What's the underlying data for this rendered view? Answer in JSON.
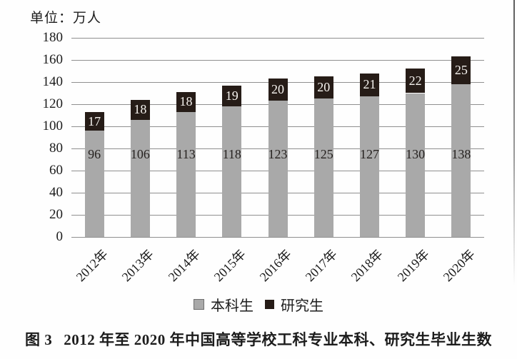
{
  "unit_label": "单位：万人",
  "caption": {
    "label": "图 3",
    "title": "2012 年至 2020 年中国高等学校工科专业本科、研究生毕业生数"
  },
  "colors": {
    "undergraduate_bar": "#a9a9a9",
    "graduate_bar": "#261c17",
    "graduate_label_text": "#f7f4f0",
    "gridline": "#8f8f8f",
    "text": "#1c1c1c",
    "legend_gray_border": "#6e6e6e"
  },
  "chart_data": {
    "type": "bar",
    "stacked": true,
    "title": "",
    "xlabel": "",
    "ylabel": "单位：万人",
    "categories": [
      "2012年",
      "2013年",
      "2014年",
      "2015年",
      "2016年",
      "2017年",
      "2018年",
      "2019年",
      "2020年"
    ],
    "series": [
      {
        "name": "本科生",
        "values": [
          96,
          106,
          113,
          118,
          123,
          125,
          127,
          130,
          138
        ]
      },
      {
        "name": "研究生",
        "values": [
          17,
          18,
          18,
          19,
          20,
          20,
          21,
          22,
          25
        ]
      }
    ],
    "totals": [
      113,
      124,
      131,
      137,
      143,
      145,
      148,
      152,
      163
    ],
    "ylim": [
      0,
      180
    ],
    "ytick_step": 20,
    "ytick_labels": [
      "0",
      "20",
      "40",
      "60",
      "80",
      "100",
      "120",
      "140",
      "160",
      "180"
    ],
    "grid": true,
    "legend_position": "bottom"
  }
}
